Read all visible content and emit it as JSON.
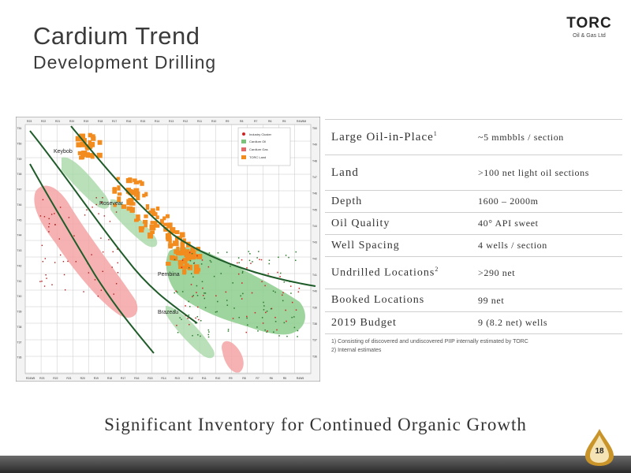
{
  "header": {
    "title": "Cardium Trend",
    "subtitle": "Development Drilling",
    "logo_name": "TORC",
    "logo_sub": "Oil & Gas Ltd"
  },
  "map": {
    "top_labels": [
      "R23",
      "R22",
      "R21",
      "R20",
      "R19",
      "R18",
      "R17",
      "R16",
      "R15",
      "R14",
      "R13",
      "R12",
      "R11",
      "R10",
      "R9",
      "R8",
      "R7",
      "R6",
      "R5",
      "R4W5M"
    ],
    "bottom_labels": [
      "R24W5",
      "R23",
      "R22",
      "R21",
      "R20",
      "R19",
      "R18",
      "R17",
      "R16",
      "R15",
      "R14",
      "R13",
      "R12",
      "R11",
      "R10",
      "R9",
      "R8",
      "R7",
      "R6",
      "R5",
      "R4W5"
    ],
    "left_labels": [
      "T51",
      "T50",
      "T49",
      "T48",
      "T47",
      "T46",
      "T45",
      "T44",
      "T43",
      "T42",
      "T41",
      "T40",
      "T39",
      "T38",
      "T37",
      "T36"
    ],
    "right_labels": [
      "T50",
      "T49",
      "T48",
      "T47",
      "T46",
      "T45",
      "T44",
      "T43",
      "T42",
      "T41",
      "T40",
      "T39",
      "T38",
      "T37",
      "T36"
    ],
    "place_labels": [
      "Keybob",
      "Rosevear",
      "Pembina",
      "Brazeau"
    ],
    "legend": [
      "Industry Cluster",
      "Cardium Oil",
      "Cardium Gas",
      "TORC Land"
    ],
    "colors": {
      "oil": "#7cc27c",
      "gas": "#e06a6a",
      "torc": "#f28c1e",
      "well": "#d42020",
      "trend": "#1f5c2a"
    }
  },
  "table": [
    {
      "label": "Large Oil-in-Place",
      "sup": "1",
      "value": "~5 mmbbls / section"
    },
    {
      "label": "Land",
      "sup": "",
      "value": ">100 net light oil sections"
    },
    {
      "label": "Depth",
      "sup": "",
      "value": "1600 – 2000m"
    },
    {
      "label": "Oil Quality",
      "sup": "",
      "value": "40° API sweet"
    },
    {
      "label": "Well Spacing",
      "sup": "",
      "value": "4 wells / section"
    },
    {
      "label": "Undrilled Locations",
      "sup": "2",
      "value": ">290 net"
    },
    {
      "label": "Booked Locations",
      "sup": "",
      "value": "99 net"
    },
    {
      "label": "2019 Budget",
      "sup": "",
      "value": "9 (8.2 net) wells"
    }
  ],
  "footnotes": [
    "1)   Consisting of discovered and undiscovered PIIP internally estimated by TORC",
    "2)   Internal estimates"
  ],
  "tagline": "Significant Inventory for Continued Organic Growth",
  "page_number": "18"
}
